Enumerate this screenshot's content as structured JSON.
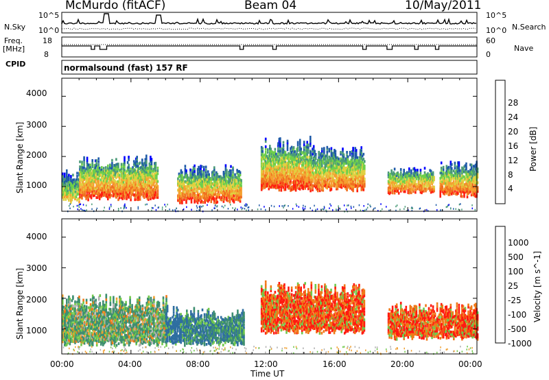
{
  "header": {
    "station": "McMurdo (fitACF)",
    "beam": "Beam 04",
    "date": "10/May/2011"
  },
  "left_labels": {
    "nsky": "N.Sky",
    "freq": "Freq.",
    "freq_unit": "[MHz]",
    "cpid": "CPID"
  },
  "right_labels": {
    "nsearch": "N.Search",
    "nave": "Nave"
  },
  "panel_ticks": {
    "noise_top_left": "10^5",
    "noise_bottom_left": "10^0",
    "noise_top_right": "10^5",
    "noise_bottom_right": "10^0",
    "freq_top": "18",
    "freq_bottom": "8",
    "nave_top": "60",
    "nave_bottom": "0"
  },
  "cpid_text": "normalsound (fast) 157 RF",
  "x_axis": {
    "title": "Time UT",
    "ticks": [
      "00:00",
      "04:00",
      "08:00",
      "12:00",
      "16:00",
      "20:00",
      "00:00"
    ]
  },
  "power_panel": {
    "ylabel": "Slant Range [km]",
    "yticks": [
      "1000",
      "2000",
      "3000",
      "4000"
    ],
    "colorbar_label": "Power [dB]",
    "colorbar_ticks": [
      "4",
      "8",
      "12",
      "16",
      "20",
      "24",
      "28"
    ],
    "colors": [
      "#0000ff",
      "#1e5aa8",
      "#4a9a78",
      "#6fcf4a",
      "#e0d040",
      "#f5a030",
      "#f07020",
      "#ff2010"
    ]
  },
  "velocity_panel": {
    "ylabel": "Slant Range [km]",
    "yticks": [
      "1000",
      "2000",
      "3000",
      "4000"
    ],
    "colorbar_label": "Velocity [m s^-1]",
    "colorbar_ticks": [
      "1000",
      "500",
      "100",
      "25",
      "-25",
      "-100",
      "-500",
      "-1000"
    ],
    "colors": [
      "#1840c0",
      "#2e6ea0",
      "#3e8e70",
      "#70c84a",
      "#b0b0b0",
      "#f0a030",
      "#f07818",
      "#ff1a10"
    ]
  },
  "chart_data": [
    {
      "type": "heatmap",
      "title": "Power",
      "xlabel": "Time UT",
      "ylabel": "Slant Range [km]",
      "x_range": [
        "00:00",
        "24:00"
      ],
      "ylim": [
        180,
        4600
      ],
      "z_label": "Power [dB]",
      "z_range": [
        0,
        30
      ],
      "echo_regions": [
        {
          "t_start": "00:00",
          "t_end": "01:00",
          "range_km": [
            500,
            1600
          ],
          "peak_db": 22
        },
        {
          "t_start": "01:00",
          "t_end": "05:30",
          "range_km": [
            600,
            2100
          ],
          "peak_db": 30
        },
        {
          "t_start": "06:40",
          "t_end": "10:20",
          "range_km": [
            500,
            1750
          ],
          "peak_db": 30
        },
        {
          "t_start": "11:30",
          "t_end": "14:20",
          "range_km": [
            900,
            2700
          ],
          "peak_db": 30
        },
        {
          "t_start": "14:20",
          "t_end": "17:30",
          "range_km": [
            900,
            2400
          ],
          "peak_db": 28
        },
        {
          "t_start": "18:50",
          "t_end": "21:30",
          "range_km": [
            800,
            1700
          ],
          "peak_db": 30
        },
        {
          "t_start": "21:50",
          "t_end": "24:00",
          "range_km": [
            700,
            1900
          ],
          "peak_db": 30
        }
      ]
    },
    {
      "type": "heatmap",
      "title": "Velocity",
      "xlabel": "Time UT",
      "ylabel": "Slant Range [km]",
      "x_range": [
        "00:00",
        "24:00"
      ],
      "ylim": [
        180,
        4600
      ],
      "z_label": "Velocity [m s^-1]",
      "z_range": [
        -1000,
        1000
      ],
      "echo_regions": [
        {
          "t_start": "00:00",
          "t_end": "06:00",
          "range_km": [
            500,
            2200
          ],
          "typical_velocity": 100
        },
        {
          "t_start": "06:00",
          "t_end": "07:00",
          "range_km": [
            500,
            1800
          ],
          "typical_velocity": 500
        },
        {
          "t_start": "07:00",
          "t_end": "10:30",
          "range_km": [
            500,
            1750
          ],
          "typical_velocity": 300
        },
        {
          "t_start": "11:30",
          "t_end": "17:30",
          "range_km": [
            900,
            2600
          ],
          "typical_velocity": -300
        },
        {
          "t_start": "18:50",
          "t_end": "24:00",
          "range_km": [
            700,
            1900
          ],
          "typical_velocity": -300
        }
      ]
    }
  ]
}
